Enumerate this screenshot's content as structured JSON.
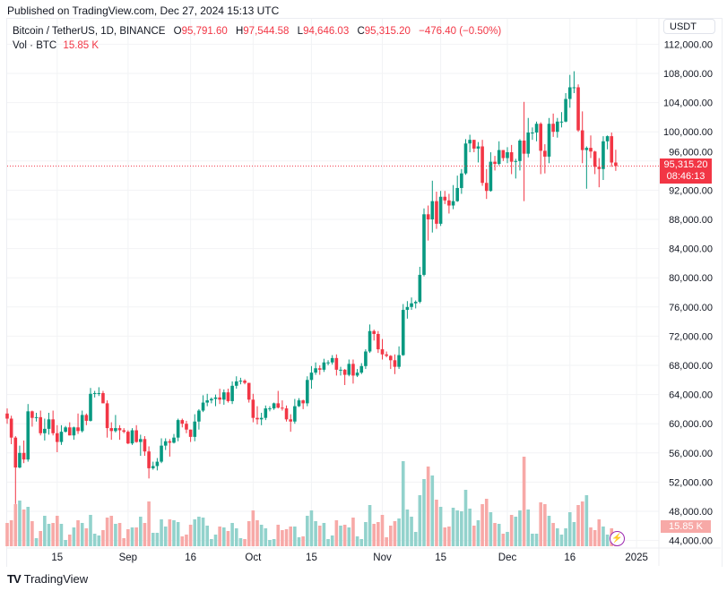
{
  "published": "Published on TradingView.com, Dec 27, 2024 15:13 UTC",
  "legend": {
    "symbol": "Bitcoin / TetherUS, 1D, BINANCE",
    "o_label": "O",
    "o_value": "95,791.60",
    "h_label": "H",
    "h_value": "97,544.58",
    "l_label": "L",
    "l_value": "94,646.03",
    "c_label": "C",
    "c_value": "95,315.20",
    "change": "−476.40 (−0.50%)",
    "vol_label": "Vol · BTC",
    "vol_value": "15.85 K"
  },
  "currency": "USDT",
  "last_price_label": "95,315.20",
  "countdown": "08:46:13",
  "volume_label": "15.85 K",
  "logo_text": "TradingView",
  "colors": {
    "up": "#089981",
    "down": "#f23645",
    "vol_up": "#92d2cc",
    "vol_down": "#f7a9a7",
    "alert": "#9c27b0"
  },
  "chart_data": {
    "type": "candlestick",
    "title": "",
    "symbol": "BTCUSDT",
    "interval": "1D",
    "ylim": [
      43000,
      113000
    ],
    "grid": true,
    "y_ticks": [
      "112,000.00",
      "108,000.00",
      "104,000.00",
      "100,000.00",
      "96,000.00",
      "92,000.00",
      "88,000.00",
      "84,000.00",
      "80,000.00",
      "76,000.00",
      "72,000.00",
      "68,000.00",
      "64,000.00",
      "60,000.00",
      "56,000.00",
      "52,000.00",
      "48,000.00",
      "44,000.00"
    ],
    "x_ticks": [
      {
        "label": "15",
        "date": "2024-08-15"
      },
      {
        "label": "Sep",
        "date": "2024-09-01"
      },
      {
        "label": "16",
        "date": "2024-09-16"
      },
      {
        "label": "Oct",
        "date": "2024-10-01"
      },
      {
        "label": "15",
        "date": "2024-10-15"
      },
      {
        "label": "Nov",
        "date": "2024-11-01"
      },
      {
        "label": "15",
        "date": "2024-11-15"
      },
      {
        "label": "Dec",
        "date": "2024-12-01"
      },
      {
        "label": "16",
        "date": "2024-12-16"
      },
      {
        "label": "2025",
        "date": "2025-01-01"
      }
    ],
    "last_price": 95315.2,
    "volume_unit": "K BTC",
    "columns": [
      "date",
      "open",
      "high",
      "low",
      "close",
      "volume"
    ],
    "candles": [
      [
        "2024-08-03",
        61400,
        62100,
        60000,
        60700,
        26
      ],
      [
        "2024-08-04",
        60700,
        61100,
        57200,
        58100,
        29
      ],
      [
        "2024-08-05",
        58100,
        58300,
        49000,
        54000,
        47
      ],
      [
        "2024-08-06",
        54000,
        57000,
        53900,
        56000,
        51
      ],
      [
        "2024-08-07",
        56000,
        57700,
        54600,
        55100,
        41
      ],
      [
        "2024-08-08",
        55100,
        62700,
        54800,
        61700,
        44
      ],
      [
        "2024-08-09",
        61700,
        61800,
        59600,
        60800,
        28
      ],
      [
        "2024-08-10",
        60800,
        61500,
        60300,
        60900,
        9
      ],
      [
        "2024-08-11",
        60900,
        61800,
        58400,
        58700,
        17
      ],
      [
        "2024-08-12",
        58700,
        60700,
        57700,
        59300,
        34
      ],
      [
        "2024-08-13",
        59300,
        61500,
        58500,
        60600,
        25
      ],
      [
        "2024-08-14",
        60600,
        61800,
        58400,
        58700,
        26
      ],
      [
        "2024-08-15",
        58700,
        59800,
        56100,
        57500,
        34
      ],
      [
        "2024-08-16",
        57500,
        59800,
        57100,
        58900,
        25
      ],
      [
        "2024-08-17",
        58900,
        59700,
        58800,
        59500,
        7
      ],
      [
        "2024-08-18",
        59500,
        60200,
        58400,
        58400,
        13
      ],
      [
        "2024-08-19",
        58400,
        59600,
        57800,
        59500,
        21
      ],
      [
        "2024-08-20",
        59500,
        61400,
        58600,
        59000,
        29
      ],
      [
        "2024-08-21",
        59000,
        61800,
        58800,
        61200,
        26
      ],
      [
        "2024-08-22",
        61200,
        61400,
        59800,
        60400,
        20
      ],
      [
        "2024-08-23",
        60400,
        64900,
        60300,
        64100,
        35
      ],
      [
        "2024-08-24",
        64100,
        64500,
        63600,
        64200,
        14
      ],
      [
        "2024-08-25",
        64200,
        65000,
        63800,
        64200,
        12
      ],
      [
        "2024-08-26",
        64200,
        64500,
        62800,
        62800,
        18
      ],
      [
        "2024-08-27",
        62800,
        63200,
        58100,
        59400,
        32
      ],
      [
        "2024-08-28",
        59400,
        60200,
        57800,
        59000,
        34
      ],
      [
        "2024-08-29",
        59000,
        61200,
        58800,
        59400,
        25
      ],
      [
        "2024-08-30",
        59400,
        59800,
        57800,
        59100,
        26
      ],
      [
        "2024-08-31",
        59100,
        59400,
        58700,
        58900,
        9
      ],
      [
        "2024-09-01",
        58900,
        59100,
        57200,
        57300,
        19
      ],
      [
        "2024-09-02",
        57300,
        59400,
        57100,
        59100,
        21
      ],
      [
        "2024-09-03",
        59100,
        59800,
        57400,
        57500,
        21
      ],
      [
        "2024-09-04",
        57500,
        58500,
        55600,
        57900,
        33
      ],
      [
        "2024-09-05",
        57900,
        58300,
        55600,
        56200,
        26
      ],
      [
        "2024-09-06",
        56200,
        56900,
        52500,
        53900,
        50
      ],
      [
        "2024-09-07",
        53900,
        54800,
        53700,
        54200,
        15
      ],
      [
        "2024-09-08",
        54200,
        55300,
        53600,
        54800,
        15
      ],
      [
        "2024-09-09",
        54800,
        58000,
        54600,
        57000,
        30
      ],
      [
        "2024-09-10",
        57000,
        58000,
        56400,
        57600,
        22
      ],
      [
        "2024-09-11",
        57600,
        57900,
        55500,
        57400,
        30
      ],
      [
        "2024-09-12",
        57400,
        58600,
        57300,
        58100,
        29
      ],
      [
        "2024-09-13",
        58100,
        60700,
        57600,
        60500,
        27
      ],
      [
        "2024-09-14",
        60500,
        60700,
        59500,
        60000,
        11
      ],
      [
        "2024-09-15",
        60000,
        60400,
        58700,
        59200,
        13
      ],
      [
        "2024-09-16",
        59200,
        59200,
        57500,
        58200,
        24
      ],
      [
        "2024-09-17",
        58200,
        61300,
        57600,
        60300,
        30
      ],
      [
        "2024-09-18",
        60300,
        62000,
        59200,
        61800,
        33
      ],
      [
        "2024-09-19",
        61800,
        63900,
        61600,
        62900,
        32
      ],
      [
        "2024-09-20",
        62900,
        64100,
        62400,
        63200,
        23
      ],
      [
        "2024-09-21",
        63200,
        63600,
        62800,
        63400,
        8
      ],
      [
        "2024-09-22",
        63400,
        64000,
        62400,
        63600,
        13
      ],
      [
        "2024-09-23",
        63600,
        64800,
        62700,
        63300,
        22
      ],
      [
        "2024-09-24",
        63300,
        64700,
        62600,
        64300,
        21
      ],
      [
        "2024-09-25",
        64300,
        64800,
        62900,
        63100,
        17
      ],
      [
        "2024-09-26",
        63100,
        65800,
        62700,
        65200,
        26
      ],
      [
        "2024-09-27",
        65200,
        66500,
        64800,
        65800,
        20
      ],
      [
        "2024-09-28",
        65800,
        66300,
        65400,
        65900,
        9
      ],
      [
        "2024-09-29",
        65900,
        66100,
        65400,
        65600,
        8
      ],
      [
        "2024-09-30",
        65600,
        65600,
        62900,
        63300,
        28
      ],
      [
        "2024-10-01",
        63300,
        64100,
        60200,
        60800,
        40
      ],
      [
        "2024-10-02",
        60800,
        62400,
        59900,
        60600,
        29
      ],
      [
        "2024-10-03",
        60600,
        61500,
        59800,
        60800,
        24
      ],
      [
        "2024-10-04",
        60800,
        62500,
        60500,
        62100,
        20
      ],
      [
        "2024-10-05",
        62100,
        62400,
        61700,
        62100,
        7
      ],
      [
        "2024-10-06",
        62100,
        62900,
        61900,
        62800,
        8
      ],
      [
        "2024-10-07",
        62800,
        64500,
        62100,
        62200,
        24
      ],
      [
        "2024-10-08",
        62200,
        63200,
        61800,
        62100,
        18
      ],
      [
        "2024-10-09",
        62100,
        62500,
        60300,
        60600,
        19
      ],
      [
        "2024-10-10",
        60600,
        61300,
        58900,
        60300,
        22
      ],
      [
        "2024-10-11",
        60300,
        63400,
        60000,
        62400,
        22
      ],
      [
        "2024-10-12",
        62400,
        63500,
        62300,
        63200,
        10
      ],
      [
        "2024-10-13",
        63200,
        63300,
        62000,
        62800,
        11
      ],
      [
        "2024-10-14",
        62800,
        66500,
        62400,
        66000,
        34
      ],
      [
        "2024-10-15",
        66000,
        67900,
        64800,
        67000,
        40
      ],
      [
        "2024-10-16",
        67000,
        68400,
        66700,
        67600,
        28
      ],
      [
        "2024-10-17",
        67600,
        68000,
        66700,
        67400,
        23
      ],
      [
        "2024-10-18",
        67400,
        68900,
        67100,
        68400,
        26
      ],
      [
        "2024-10-19",
        68400,
        68700,
        68000,
        68400,
        8
      ],
      [
        "2024-10-20",
        68400,
        69400,
        68100,
        69000,
        12
      ],
      [
        "2024-10-21",
        69000,
        69500,
        66600,
        67400,
        29
      ],
      [
        "2024-10-22",
        67400,
        67800,
        66600,
        67400,
        23
      ],
      [
        "2024-10-23",
        67400,
        67500,
        65300,
        66700,
        24
      ],
      [
        "2024-10-24",
        66700,
        68800,
        66500,
        68200,
        21
      ],
      [
        "2024-10-25",
        68200,
        68800,
        65500,
        66600,
        32
      ],
      [
        "2024-10-26",
        66600,
        67500,
        66400,
        67000,
        11
      ],
      [
        "2024-10-27",
        67000,
        68300,
        66800,
        67900,
        8
      ],
      [
        "2024-10-28",
        67900,
        70200,
        67500,
        69900,
        27
      ],
      [
        "2024-10-29",
        69900,
        73600,
        69700,
        72700,
        46
      ],
      [
        "2024-10-30",
        72700,
        72900,
        71400,
        72300,
        25
      ],
      [
        "2024-10-31",
        72300,
        72700,
        69700,
        70200,
        27
      ],
      [
        "2024-11-01",
        70200,
        71600,
        68800,
        69500,
        35
      ],
      [
        "2024-11-02",
        69500,
        69900,
        69100,
        69300,
        10
      ],
      [
        "2024-11-03",
        69300,
        69400,
        67500,
        68700,
        23
      ],
      [
        "2024-11-04",
        68700,
        69500,
        66800,
        67800,
        28
      ],
      [
        "2024-11-05",
        67800,
        70600,
        67500,
        69400,
        31
      ],
      [
        "2024-11-06",
        69400,
        76400,
        69300,
        75600,
        95
      ],
      [
        "2024-11-07",
        75600,
        76800,
        74400,
        76000,
        41
      ],
      [
        "2024-11-08",
        76000,
        77300,
        75600,
        76500,
        33
      ],
      [
        "2024-11-09",
        76500,
        76900,
        75800,
        76700,
        16
      ],
      [
        "2024-11-10",
        76700,
        81500,
        76500,
        80400,
        57
      ],
      [
        "2024-11-11",
        80400,
        89500,
        80200,
        88700,
        75
      ],
      [
        "2024-11-12",
        88700,
        89900,
        85100,
        88000,
        89
      ],
      [
        "2024-11-13",
        88000,
        93300,
        86200,
        90500,
        79
      ],
      [
        "2024-11-14",
        90500,
        91800,
        86700,
        87400,
        52
      ],
      [
        "2024-11-15",
        87400,
        91900,
        87100,
        91100,
        44
      ],
      [
        "2024-11-16",
        91100,
        91900,
        90100,
        90600,
        21
      ],
      [
        "2024-11-17",
        90600,
        91500,
        88800,
        89900,
        22
      ],
      [
        "2024-11-18",
        89900,
        92700,
        89400,
        90500,
        43
      ],
      [
        "2024-11-19",
        90500,
        94000,
        90400,
        92300,
        40
      ],
      [
        "2024-11-20",
        92300,
        94900,
        91500,
        94300,
        39
      ],
      [
        "2024-11-21",
        94300,
        99000,
        94100,
        98400,
        63
      ],
      [
        "2024-11-22",
        98400,
        99600,
        97200,
        98900,
        42
      ],
      [
        "2024-11-23",
        98900,
        98900,
        97200,
        97700,
        23
      ],
      [
        "2024-11-24",
        97700,
        98600,
        95800,
        98000,
        29
      ],
      [
        "2024-11-25",
        98000,
        98900,
        92600,
        93000,
        47
      ],
      [
        "2024-11-26",
        93000,
        94900,
        90800,
        91900,
        53
      ],
      [
        "2024-11-27",
        91900,
        97200,
        91800,
        95900,
        38
      ],
      [
        "2024-11-28",
        95900,
        96700,
        94700,
        95600,
        26
      ],
      [
        "2024-11-29",
        95600,
        98700,
        95400,
        97500,
        25
      ],
      [
        "2024-11-30",
        97500,
        97500,
        96000,
        96400,
        14
      ],
      [
        "2024-12-01",
        96400,
        97900,
        95700,
        97200,
        16
      ],
      [
        "2024-12-02",
        97200,
        98200,
        94200,
        95900,
        35
      ],
      [
        "2024-12-03",
        95900,
        96300,
        93600,
        96000,
        33
      ],
      [
        "2024-12-04",
        96000,
        99000,
        94700,
        98800,
        40
      ],
      [
        "2024-12-05",
        98800,
        104100,
        90500,
        97000,
        100
      ],
      [
        "2024-12-06",
        97000,
        101900,
        96500,
        99900,
        41
      ],
      [
        "2024-12-07",
        99900,
        100600,
        98900,
        99900,
        14
      ],
      [
        "2024-12-08",
        99900,
        101400,
        98700,
        101100,
        14
      ],
      [
        "2024-12-09",
        101100,
        101300,
        94200,
        97400,
        49
      ],
      [
        "2024-12-10",
        97400,
        98300,
        94300,
        96600,
        47
      ],
      [
        "2024-12-11",
        96600,
        101900,
        95700,
        101100,
        34
      ],
      [
        "2024-12-12",
        101100,
        102500,
        99300,
        100000,
        26
      ],
      [
        "2024-12-13",
        100000,
        101900,
        99200,
        101400,
        20
      ],
      [
        "2024-12-14",
        101400,
        102700,
        100600,
        101400,
        13
      ],
      [
        "2024-12-15",
        101400,
        105300,
        101300,
        104500,
        20
      ],
      [
        "2024-12-16",
        104500,
        107800,
        103300,
        106100,
        38
      ],
      [
        "2024-12-17",
        106100,
        108300,
        105300,
        106100,
        27
      ],
      [
        "2024-12-18",
        106100,
        106500,
        100000,
        100200,
        46
      ],
      [
        "2024-12-19",
        100200,
        102800,
        95700,
        97500,
        50
      ],
      [
        "2024-12-20",
        97500,
        98000,
        92200,
        97800,
        57
      ],
      [
        "2024-12-21",
        97800,
        99500,
        96400,
        97300,
        21
      ],
      [
        "2024-12-22",
        97300,
        97400,
        94200,
        95200,
        18
      ],
      [
        "2024-12-23",
        95200,
        96400,
        92400,
        94900,
        30
      ],
      [
        "2024-12-24",
        94900,
        99400,
        93400,
        98700,
        22
      ],
      [
        "2024-12-25",
        98700,
        99500,
        97600,
        99400,
        13
      ],
      [
        "2024-12-26",
        99400,
        99900,
        95200,
        95790,
        20
      ],
      [
        "2024-12-27",
        95791.6,
        97544.58,
        94646.03,
        95315.2,
        15.85
      ]
    ]
  }
}
